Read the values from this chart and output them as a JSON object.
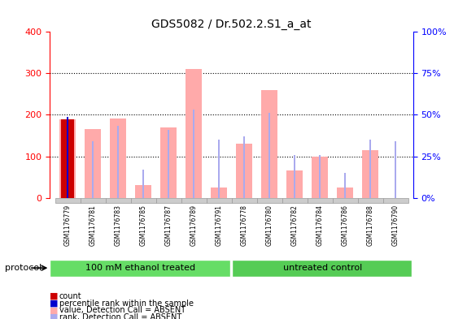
{
  "title": "GDS5082 / Dr.502.2.S1_a_at",
  "samples": [
    "GSM1176779",
    "GSM1176781",
    "GSM1176783",
    "GSM1176785",
    "GSM1176787",
    "GSM1176789",
    "GSM1176791",
    "GSM1176778",
    "GSM1176780",
    "GSM1176782",
    "GSM1176784",
    "GSM1176786",
    "GSM1176788",
    "GSM1176790"
  ],
  "value_absent": [
    190,
    165,
    192,
    30,
    170,
    310,
    25,
    130,
    260,
    65,
    100,
    25,
    115,
    null
  ],
  "rank_absent": [
    195,
    137,
    173,
    68,
    163,
    213,
    140,
    148,
    205,
    103,
    103,
    60,
    140,
    136
  ],
  "count_value": [
    190,
    null,
    null,
    null,
    null,
    null,
    null,
    null,
    null,
    null,
    null,
    null,
    null,
    null
  ],
  "percentile_value": [
    195,
    null,
    null,
    null,
    null,
    null,
    null,
    null,
    null,
    null,
    null,
    null,
    null,
    null
  ],
  "ylim_left": [
    0,
    400
  ],
  "ylim_right": [
    0,
    100
  ],
  "yticks_left": [
    0,
    100,
    200,
    300,
    400
  ],
  "yticks_right": [
    0,
    25,
    50,
    75,
    100
  ],
  "ytick_right_labels": [
    "0%",
    "25%",
    "50%",
    "75%",
    "100%"
  ],
  "groups": [
    {
      "label": "100 mM ethanol treated",
      "start": 0,
      "end": 7
    },
    {
      "label": "untreated control",
      "start": 7,
      "end": 14
    }
  ],
  "group_colors": [
    "#66dd66",
    "#44cc44"
  ],
  "protocol_label": "protocol",
  "bar_width": 0.35,
  "value_absent_color": "#ffaaaa",
  "rank_absent_color": "#aaaaee",
  "count_color": "#cc0000",
  "percentile_color": "#0000cc",
  "background_plot": "#ffffff",
  "background_xtick": "#dddddd",
  "grid_color": "#000000",
  "legend_items": [
    {
      "label": "count",
      "color": "#cc0000"
    },
    {
      "label": "percentile rank within the sample",
      "color": "#0000cc"
    },
    {
      "label": "value, Detection Call = ABSENT",
      "color": "#ffaaaa"
    },
    {
      "label": "rank, Detection Call = ABSENT",
      "color": "#aaaaee"
    }
  ]
}
